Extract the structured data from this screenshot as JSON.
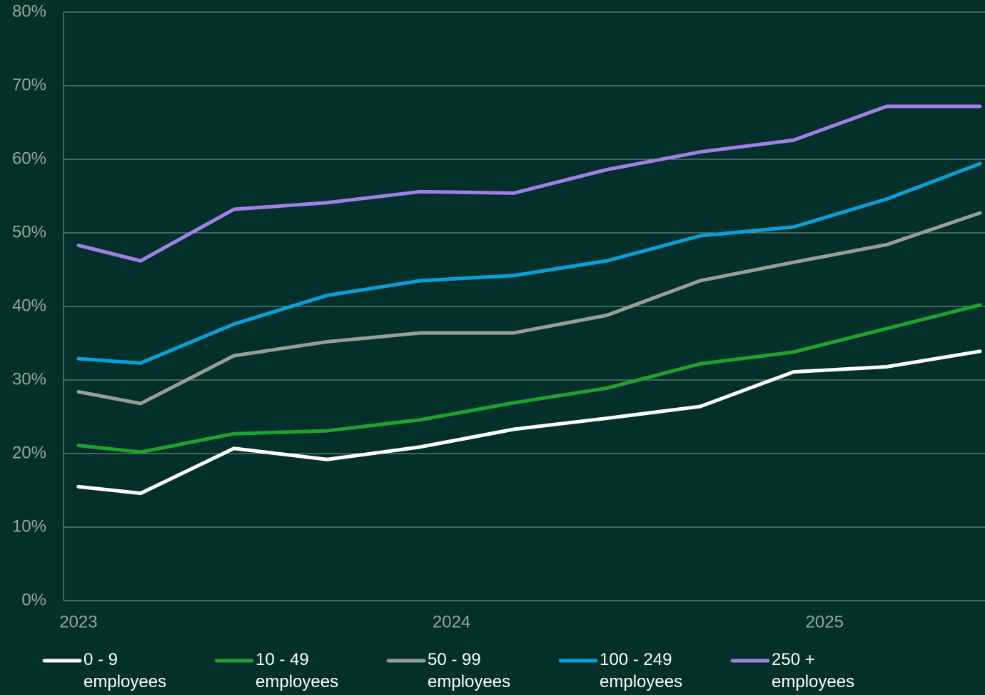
{
  "chart_data": {
    "type": "line",
    "x": [
      2023.0,
      2023.1667,
      2023.4167,
      2023.6667,
      2023.9167,
      2024.1667,
      2024.4167,
      2024.6667,
      2024.9167,
      2025.1667,
      2025.4167
    ],
    "xlim": [
      2022.96,
      2025.43
    ],
    "xticks": [
      2023,
      2024,
      2025
    ],
    "ylim": [
      0,
      80
    ],
    "yticks": [
      {
        "value": 0,
        "label": "0%"
      },
      {
        "value": 10,
        "label": "10%"
      },
      {
        "value": 20,
        "label": "20%"
      },
      {
        "value": 30,
        "label": "30%"
      },
      {
        "value": 40,
        "label": "40%"
      },
      {
        "value": 50,
        "label": "50%"
      },
      {
        "value": 60,
        "label": "60%"
      },
      {
        "value": 70,
        "label": "70%"
      },
      {
        "value": 80,
        "label": "80%"
      }
    ],
    "grid": true,
    "legend": "bottom",
    "series": [
      {
        "name": "0 - 9 employees",
        "color": "#ffffff",
        "values": [
          15.5,
          14.6,
          20.7,
          19.2,
          20.9,
          23.3,
          24.8,
          26.4,
          31.1,
          31.8,
          33.9
        ]
      },
      {
        "name": "10 - 49 employees",
        "color": "#1fa22e",
        "values": [
          21.1,
          20.2,
          22.7,
          23.1,
          24.6,
          26.9,
          28.9,
          32.2,
          33.8,
          37.0,
          40.2
        ]
      },
      {
        "name": "50 - 99 employees",
        "color": "#9b9b9b",
        "values": [
          28.4,
          26.8,
          33.3,
          35.2,
          36.4,
          36.4,
          38.8,
          43.5,
          46.0,
          48.4,
          52.7
        ]
      },
      {
        "name": "100 - 249 employees",
        "color": "#0a9fd6",
        "values": [
          32.9,
          32.3,
          37.6,
          41.5,
          43.5,
          44.2,
          46.2,
          49.6,
          50.8,
          54.6,
          59.4
        ]
      },
      {
        "name": "250 + employees",
        "color": "#a07fe6",
        "values": [
          48.3,
          46.2,
          53.2,
          54.1,
          55.6,
          55.4,
          58.6,
          61.0,
          62.6,
          67.2,
          67.2
        ]
      }
    ]
  }
}
